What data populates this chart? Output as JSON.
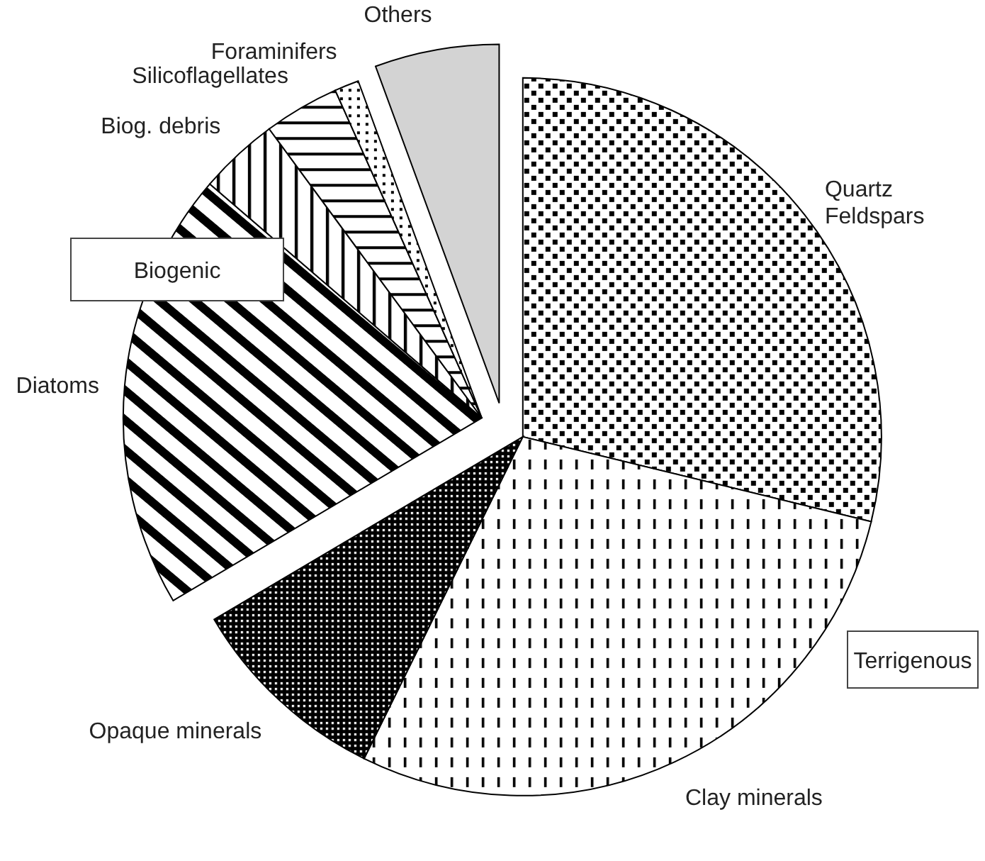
{
  "chart_data": {
    "type": "pie",
    "categories": [
      "Quartz Feldspars",
      "Clay minerals",
      "Opaque minerals",
      "Diatoms",
      "Biog. debris",
      "Silicoflagellates",
      "Foraminifers",
      "Others"
    ],
    "values": [
      28.8,
      28.5,
      9.2,
      19.8,
      3.6,
      3.4,
      1.1,
      5.6
    ],
    "colors": [
      "#000000",
      "#000000",
      "#000000",
      "#000000",
      "#000000",
      "#000000",
      "#000000",
      "#d3d3d3"
    ],
    "annotations": [
      "Terrigenous",
      "Biogenic"
    ]
  }
}
